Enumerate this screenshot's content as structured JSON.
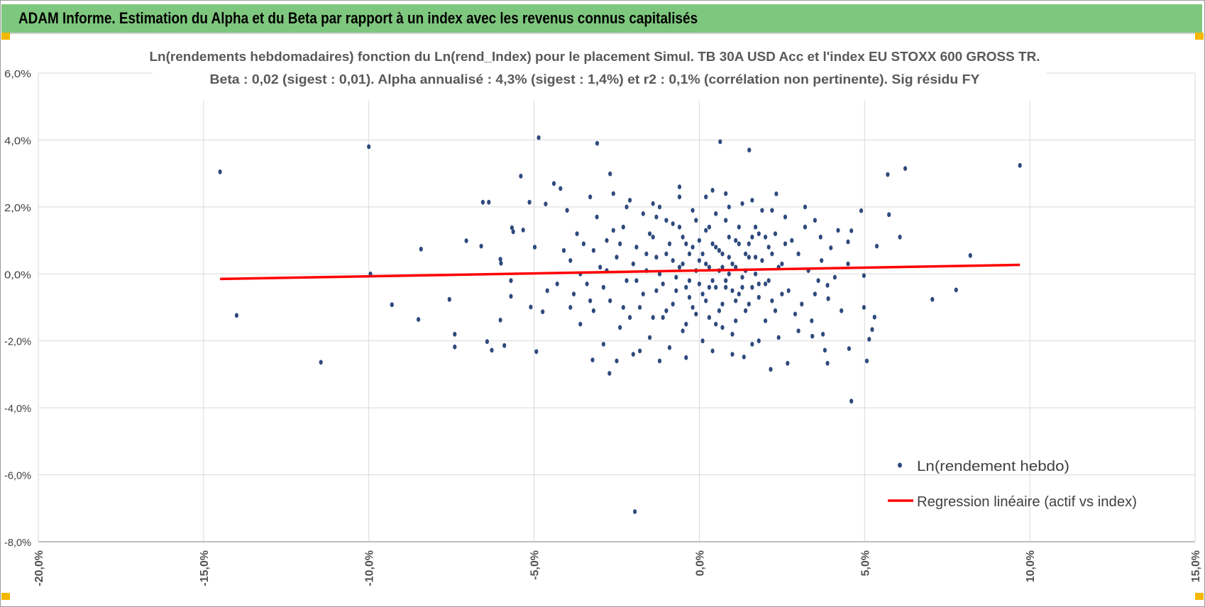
{
  "header": {
    "title": "ADAM Informe. Estimation du Alpha et du Beta par rapport à un index avec les revenus connus capitalisés"
  },
  "colors": {
    "header_bg": "#7ec77e",
    "points": "#2e4a7d",
    "regression": "#ff0000",
    "grid": "#d9d9d9",
    "text": "#595959",
    "corner_marks": "#f5b800"
  },
  "chart_data": {
    "type": "scatter",
    "title": "Ln(rendements hebdomadaires) fonction du Ln(rend_Index) pour le placement Simul. TB 30A USD Acc et l'index EU STOXX 600 GROSS TR.",
    "subtitle": "Beta : 0,02 (sigest : 0,01). Alpha annualisé : 4,3% (sigest : 1,4%) et r2 : 0,1% (corrélation non pertinente). Sig résidu FY",
    "xlim": [
      -20,
      15
    ],
    "ylim": [
      -8,
      6
    ],
    "x_ticks": [
      -20,
      -15,
      -10,
      -5,
      0,
      5,
      10,
      15
    ],
    "y_ticks": [
      -8,
      -6,
      -4,
      -2,
      0,
      2,
      4,
      6
    ],
    "x_tick_labels": [
      "-20,0%",
      "-15,0%",
      "-10,0%",
      "-5,0%",
      "0,0%",
      "5,0%",
      "10,0%",
      "15,0%"
    ],
    "y_tick_labels": [
      "-8,0%",
      "-6,0%",
      "-4,0%",
      "-2,0%",
      "0,0%",
      "2,0%",
      "4,0%",
      "6,0%"
    ],
    "grid": true,
    "legend_position": "bottom-right",
    "series": [
      {
        "name": "Ln(rendement hebdo)",
        "type": "scatter",
        "points": [
          [
            -14.5,
            3.05
          ],
          [
            -14.0,
            -1.24
          ],
          [
            -11.45,
            -2.64
          ],
          [
            -10.0,
            3.8
          ],
          [
            -9.95,
            0.0
          ],
          [
            -9.3,
            -0.92
          ],
          [
            -8.42,
            0.74
          ],
          [
            -8.5,
            -1.36
          ],
          [
            -7.56,
            -0.76
          ],
          [
            -7.4,
            -1.8
          ],
          [
            -7.4,
            -2.18
          ],
          [
            -7.05,
            0.99
          ],
          [
            -6.6,
            0.83
          ],
          [
            -6.55,
            2.14
          ],
          [
            -6.37,
            2.14
          ],
          [
            -6.42,
            -2.02
          ],
          [
            -6.28,
            -2.28
          ],
          [
            -6.02,
            0.44
          ],
          [
            -6.0,
            0.32
          ],
          [
            -5.9,
            -2.14
          ],
          [
            -6.02,
            -1.38
          ],
          [
            -5.67,
            1.38
          ],
          [
            -5.63,
            1.26
          ],
          [
            -5.4,
            2.92
          ],
          [
            -5.33,
            1.31
          ],
          [
            -5.14,
            2.14
          ],
          [
            -4.98,
            0.8
          ],
          [
            -4.86,
            4.07
          ],
          [
            -4.93,
            -2.32
          ],
          [
            -5.1,
            -0.99
          ],
          [
            -4.65,
            2.09
          ],
          [
            -4.74,
            -1.13
          ],
          [
            -5.7,
            -0.67
          ],
          [
            -5.7,
            -0.2
          ],
          [
            -3.09,
            3.9
          ],
          [
            -2.7,
            2.99
          ],
          [
            -3.23,
            -2.57
          ],
          [
            -2.72,
            -2.97
          ],
          [
            -1.95,
            -7.1
          ],
          [
            0.63,
            3.95
          ],
          [
            1.51,
            3.7
          ],
          [
            4.53,
            -2.23
          ],
          [
            4.6,
            -3.8
          ],
          [
            4.98,
            -0.05
          ],
          [
            4.9,
            1.89
          ],
          [
            4.98,
            -1.0
          ],
          [
            5.14,
            -1.95
          ],
          [
            5.23,
            -1.66
          ],
          [
            5.3,
            -1.29
          ],
          [
            5.37,
            0.83
          ],
          [
            5.07,
            -2.6
          ],
          [
            5.7,
            2.97
          ],
          [
            5.74,
            1.77
          ],
          [
            6.07,
            1.1
          ],
          [
            6.23,
            3.15
          ],
          [
            7.05,
            -0.76
          ],
          [
            7.77,
            -0.48
          ],
          [
            8.2,
            0.55
          ],
          [
            9.7,
            3.24
          ],
          [
            4.5,
            0.96
          ],
          [
            4.6,
            1.29
          ],
          [
            4.5,
            0.3
          ],
          [
            3.88,
            -0.34
          ],
          [
            3.88,
            -2.67
          ],
          [
            3.8,
            -2.28
          ],
          [
            3.9,
            -0.74
          ],
          [
            3.67,
            1.1
          ],
          [
            3.98,
            0.78
          ],
          [
            3.42,
            -1.86
          ],
          [
            3.74,
            -1.8
          ],
          [
            2.67,
            -2.67
          ],
          [
            2.16,
            -2.85
          ],
          [
            2.33,
            2.39
          ],
          [
            1.35,
            -2.48
          ],
          [
            -4.4,
            2.7
          ],
          [
            -4.2,
            2.55
          ],
          [
            -4.0,
            1.9
          ],
          [
            -3.9,
            0.4
          ],
          [
            -3.8,
            -0.6
          ],
          [
            -3.7,
            1.2
          ],
          [
            -3.6,
            -1.5
          ],
          [
            -3.5,
            0.9
          ],
          [
            -3.4,
            -0.3
          ],
          [
            -3.3,
            2.3
          ],
          [
            -3.2,
            -1.1
          ],
          [
            -3.1,
            1.7
          ],
          [
            -3.0,
            0.2
          ],
          [
            -2.9,
            -2.1
          ],
          [
            -2.8,
            1.0
          ],
          [
            -2.7,
            -0.8
          ],
          [
            -2.6,
            2.4
          ],
          [
            -2.5,
            0.5
          ],
          [
            -2.4,
            -1.6
          ],
          [
            -2.3,
            1.4
          ],
          [
            -2.2,
            -0.2
          ],
          [
            -2.1,
            2.2
          ],
          [
            -2.0,
            -2.4
          ],
          [
            -1.9,
            0.8
          ],
          [
            -1.8,
            -1.0
          ],
          [
            -1.7,
            1.8
          ],
          [
            -1.6,
            0.1
          ],
          [
            -1.5,
            -1.9
          ],
          [
            -1.4,
            1.1
          ],
          [
            -1.3,
            -0.5
          ],
          [
            -1.2,
            2.0
          ],
          [
            -1.1,
            -1.3
          ],
          [
            -1.0,
            0.6
          ],
          [
            -0.9,
            -2.2
          ],
          [
            -0.8,
            1.5
          ],
          [
            -0.7,
            -0.1
          ],
          [
            -0.6,
            2.3
          ],
          [
            -0.5,
            -1.7
          ],
          [
            -0.4,
            0.9
          ],
          [
            -0.3,
            -0.7
          ],
          [
            -0.2,
            1.9
          ],
          [
            -0.1,
            -1.2
          ],
          [
            0.0,
            0.4
          ],
          [
            0.1,
            -2.0
          ],
          [
            0.2,
            1.3
          ],
          [
            0.3,
            -0.4
          ],
          [
            0.4,
            2.5
          ],
          [
            0.5,
            -1.5
          ],
          [
            0.6,
            0.7
          ],
          [
            0.7,
            -0.9
          ],
          [
            0.8,
            1.6
          ],
          [
            0.9,
            0.0
          ],
          [
            1.0,
            -1.8
          ],
          [
            1.1,
            1.0
          ],
          [
            1.2,
            -0.6
          ],
          [
            1.3,
            2.1
          ],
          [
            1.4,
            -1.1
          ],
          [
            1.5,
            0.5
          ],
          [
            1.6,
            -2.1
          ],
          [
            1.7,
            1.4
          ],
          [
            1.8,
            -0.3
          ],
          [
            1.9,
            1.9
          ],
          [
            2.0,
            -1.4
          ],
          [
            2.1,
            0.8
          ],
          [
            2.2,
            -0.8
          ],
          [
            2.3,
            1.2
          ],
          [
            2.4,
            -1.9
          ],
          [
            2.5,
            0.3
          ],
          [
            2.6,
            1.7
          ],
          [
            2.7,
            -0.5
          ],
          [
            2.8,
            1.0
          ],
          [
            2.9,
            -1.2
          ],
          [
            3.0,
            0.6
          ],
          [
            3.1,
            -0.9
          ],
          [
            3.2,
            1.4
          ],
          [
            3.3,
            0.1
          ],
          [
            3.4,
            -1.4
          ],
          [
            3.5,
            1.6
          ],
          [
            3.6,
            -0.2
          ],
          [
            -3.6,
            0.0
          ],
          [
            -3.2,
            0.7
          ],
          [
            -2.9,
            -0.4
          ],
          [
            -2.6,
            1.3
          ],
          [
            -2.3,
            -1.0
          ],
          [
            -2.0,
            0.3
          ],
          [
            -1.7,
            -0.6
          ],
          [
            -1.5,
            1.2
          ],
          [
            -1.3,
            0.5
          ],
          [
            -1.1,
            -0.3
          ],
          [
            -0.9,
            0.9
          ],
          [
            -0.8,
            -0.9
          ],
          [
            -0.6,
            0.2
          ],
          [
            -0.5,
            1.1
          ],
          [
            -0.4,
            -0.4
          ],
          [
            -0.3,
            0.6
          ],
          [
            -0.2,
            -1.0
          ],
          [
            -0.1,
            0.1
          ],
          [
            0.0,
            1.0
          ],
          [
            0.1,
            -0.6
          ],
          [
            0.2,
            0.3
          ],
          [
            0.3,
            1.4
          ],
          [
            0.4,
            -0.2
          ],
          [
            0.5,
            0.8
          ],
          [
            0.6,
            -1.1
          ],
          [
            0.7,
            0.2
          ],
          [
            0.8,
            -0.4
          ],
          [
            0.9,
            1.1
          ],
          [
            1.0,
            0.3
          ],
          [
            1.1,
            -0.8
          ],
          [
            1.2,
            0.9
          ],
          [
            1.3,
            -0.1
          ],
          [
            1.4,
            0.6
          ],
          [
            1.5,
            -0.9
          ],
          [
            1.6,
            1.1
          ],
          [
            1.7,
            0.0
          ],
          [
            1.8,
            -0.7
          ],
          [
            1.9,
            0.4
          ],
          [
            2.0,
            1.1
          ],
          [
            2.1,
            -0.2
          ],
          [
            2.2,
            0.6
          ],
          [
            2.3,
            -1.1
          ],
          [
            2.4,
            0.2
          ],
          [
            2.5,
            -0.6
          ],
          [
            2.6,
            0.9
          ],
          [
            -1.9,
            -0.2
          ],
          [
            -1.6,
            0.6
          ],
          [
            -1.4,
            -1.3
          ],
          [
            -1.2,
            0.0
          ],
          [
            -1.0,
            1.6
          ],
          [
            -0.8,
            0.4
          ],
          [
            -0.7,
            -0.5
          ],
          [
            -0.5,
            0.3
          ],
          [
            -0.3,
            -0.2
          ],
          [
            -0.2,
            0.8
          ],
          [
            0.0,
            -0.3
          ],
          [
            0.1,
            0.6
          ],
          [
            0.2,
            -0.8
          ],
          [
            0.3,
            0.2
          ],
          [
            0.4,
            0.9
          ],
          [
            0.5,
            -0.4
          ],
          [
            0.6,
            0.1
          ],
          [
            0.7,
            0.6
          ],
          [
            0.8,
            -0.2
          ],
          [
            0.9,
            0.5
          ],
          [
            1.0,
            -0.5
          ],
          [
            1.1,
            0.2
          ],
          [
            1.2,
            1.4
          ],
          [
            1.3,
            -0.4
          ],
          [
            1.4,
            0.1
          ],
          [
            1.5,
            0.9
          ],
          [
            1.6,
            -0.4
          ],
          [
            1.7,
            0.5
          ],
          [
            1.8,
            1.2
          ],
          [
            2.0,
            -0.3
          ],
          [
            0.3,
            -1.3
          ],
          [
            0.5,
            1.8
          ],
          [
            0.7,
            -1.6
          ],
          [
            0.9,
            2.0
          ],
          [
            1.1,
            -1.4
          ],
          [
            -0.1,
            1.6
          ],
          [
            -0.4,
            -1.5
          ],
          [
            -0.6,
            1.4
          ],
          [
            -1.0,
            -1.1
          ],
          [
            -1.3,
            1.7
          ],
          [
            -2.1,
            -1.3
          ],
          [
            -2.4,
            0.9
          ],
          [
            -2.8,
            0.1
          ],
          [
            -3.3,
            -0.8
          ],
          [
            -3.9,
            -1.0
          ],
          [
            -4.1,
            0.7
          ],
          [
            -4.3,
            -0.3
          ],
          [
            -4.6,
            -0.5
          ],
          [
            3.0,
            -1.7
          ],
          [
            3.2,
            2.0
          ],
          [
            3.5,
            -0.6
          ],
          [
            3.7,
            0.4
          ],
          [
            4.1,
            -0.1
          ],
          [
            4.2,
            1.3
          ],
          [
            4.3,
            -1.1
          ],
          [
            -2.5,
            -2.6
          ],
          [
            -1.8,
            -2.3
          ],
          [
            -1.2,
            -2.6
          ],
          [
            -0.4,
            -2.5
          ],
          [
            0.4,
            -2.3
          ],
          [
            1.0,
            -2.4
          ],
          [
            1.8,
            -2.0
          ],
          [
            -2.2,
            2.0
          ],
          [
            -1.4,
            2.1
          ],
          [
            -0.6,
            2.6
          ],
          [
            0.2,
            2.3
          ],
          [
            0.8,
            2.4
          ],
          [
            1.6,
            2.2
          ],
          [
            2.2,
            1.9
          ]
        ]
      },
      {
        "name": "Regression linéaire (actif vs index)",
        "type": "line",
        "points": [
          [
            -14.5,
            -0.15
          ],
          [
            9.7,
            0.27
          ]
        ]
      }
    ]
  }
}
